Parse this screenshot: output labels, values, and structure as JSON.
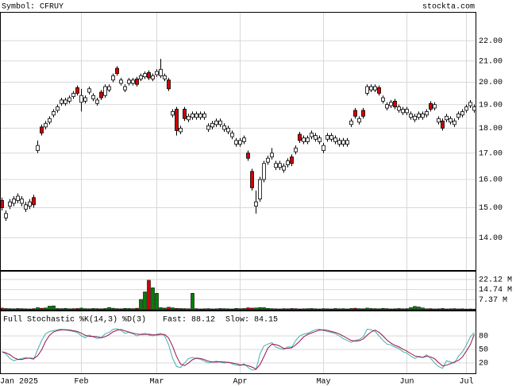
{
  "chart_data": {
    "type": "candlestick",
    "title": "Symbol: CFRUY",
    "source": "stockta.com",
    "log_scale": true,
    "grid": true,
    "up_color": "#ffffff",
    "down_color": "#d40000",
    "ylim": [
      13.0,
      23.5
    ],
    "yticks": [
      {
        "value": 22,
        "label": "22.00"
      },
      {
        "value": 21,
        "label": "21.00"
      },
      {
        "value": 20,
        "label": "20.00"
      },
      {
        "value": 19,
        "label": "19.00"
      },
      {
        "value": 18,
        "label": "18.00"
      },
      {
        "value": 17,
        "label": "17.00"
      },
      {
        "value": 16,
        "label": "16.00"
      },
      {
        "value": 15,
        "label": "15.00"
      },
      {
        "value": 14,
        "label": "14.00"
      }
    ],
    "categories": [
      "Jan 2025",
      null,
      null,
      null,
      null,
      null,
      null,
      null,
      null,
      null,
      null,
      null,
      null,
      null,
      null,
      null,
      null,
      null,
      null,
      null,
      "Feb",
      null,
      null,
      null,
      null,
      null,
      null,
      null,
      null,
      null,
      null,
      null,
      null,
      null,
      null,
      null,
      null,
      null,
      null,
      "Mar",
      null,
      null,
      null,
      null,
      null,
      null,
      null,
      null,
      null,
      null,
      null,
      null,
      null,
      null,
      null,
      null,
      null,
      null,
      null,
      null,
      "Apr",
      null,
      null,
      null,
      null,
      null,
      null,
      null,
      null,
      null,
      null,
      null,
      null,
      null,
      null,
      null,
      null,
      null,
      null,
      null,
      null,
      "May",
      null,
      null,
      null,
      null,
      null,
      null,
      null,
      null,
      null,
      null,
      null,
      null,
      null,
      null,
      null,
      null,
      null,
      null,
      null,
      null,
      "Jun",
      null,
      null,
      null,
      null,
      null,
      null,
      null,
      null,
      null,
      null,
      null,
      null,
      null,
      null,
      "Jul",
      null,
      null
    ],
    "open": [
      15.25,
      14.65,
      15.05,
      15.15,
      15.25,
      15.15,
      14.95,
      15.05,
      15.35,
      17.1,
      18.05,
      18.05,
      18.25,
      18.55,
      18.75,
      19.05,
      19.05,
      19.15,
      19.35,
      19.75,
      19.1,
      19.15,
      19.55,
      19.25,
      19.05,
      19.55,
      19.4,
      19.65,
      20.1,
      20.65,
      19.95,
      19.65,
      19.95,
      19.95,
      20.15,
      20.15,
      20.25,
      20.45,
      20.15,
      20.35,
      20.3,
      20.15,
      20.1,
      18.55,
      18.8,
      17.85,
      18.8,
      18.35,
      18.45,
      18.45,
      18.45,
      18.45,
      17.95,
      18.05,
      18.15,
      18.15,
      17.95,
      17.85,
      17.65,
      17.35,
      17.35,
      17.45,
      17.0,
      16.3,
      15.05,
      15.3,
      16.0,
      16.65,
      16.85,
      16.45,
      16.45,
      16.35,
      16.55,
      16.85,
      17.05,
      17.75,
      17.45,
      17.45,
      17.65,
      17.55,
      17.45,
      17.1,
      17.55,
      17.55,
      17.45,
      17.35,
      17.35,
      17.35,
      18.15,
      18.75,
      18.25,
      18.75,
      19.5,
      19.65,
      19.65,
      19.75,
      19.15,
      18.85,
      18.95,
      19.15,
      18.75,
      18.65,
      18.65,
      18.45,
      18.35,
      18.45,
      18.45,
      18.55,
      19.05,
      18.85,
      18.25,
      18.3,
      18.35,
      18.25,
      18.15,
      18.45,
      18.55,
      18.75,
      18.95,
      18.75
    ],
    "high": [
      15.35,
      14.9,
      15.3,
      15.4,
      15.5,
      15.4,
      15.2,
      15.3,
      15.45,
      17.5,
      18.15,
      18.3,
      18.5,
      18.8,
      19.0,
      19.3,
      19.3,
      19.4,
      19.6,
      19.85,
      19.7,
      19.4,
      19.8,
      19.5,
      19.3,
      19.65,
      19.9,
      19.9,
      20.4,
      20.75,
      20.2,
      19.9,
      20.2,
      20.2,
      20.25,
      20.4,
      20.5,
      20.55,
      20.4,
      20.6,
      21.1,
      20.4,
      20.2,
      18.8,
      18.9,
      18.1,
      18.9,
      18.6,
      18.7,
      18.7,
      18.7,
      18.7,
      18.2,
      18.3,
      18.4,
      18.4,
      18.2,
      18.1,
      17.9,
      17.6,
      17.6,
      17.7,
      17.1,
      16.4,
      15.6,
      16.1,
      16.7,
      16.9,
      17.2,
      16.7,
      16.7,
      16.6,
      16.8,
      16.95,
      17.3,
      17.85,
      17.7,
      17.7,
      17.9,
      17.8,
      17.7,
      17.4,
      17.8,
      17.8,
      17.7,
      17.6,
      17.6,
      17.6,
      18.4,
      18.85,
      18.5,
      18.85,
      19.9,
      19.9,
      19.9,
      19.85,
      19.4,
      19.1,
      19.2,
      19.25,
      19.0,
      18.9,
      18.9,
      18.7,
      18.6,
      18.7,
      18.7,
      18.8,
      19.15,
      19.1,
      18.5,
      18.4,
      18.6,
      18.5,
      18.4,
      18.7,
      18.8,
      19.0,
      19.2,
      19.0
    ],
    "low": [
      14.9,
      14.55,
      14.95,
      15.05,
      15.15,
      15.05,
      14.85,
      14.95,
      15.0,
      17.0,
      17.7,
      17.95,
      18.15,
      18.45,
      18.65,
      18.95,
      18.95,
      19.05,
      19.25,
      19.4,
      18.7,
      19.05,
      19.45,
      19.15,
      18.95,
      19.2,
      19.3,
      19.55,
      20.0,
      20.3,
      19.85,
      19.55,
      19.85,
      19.85,
      19.8,
      20.05,
      20.15,
      20.1,
      20.05,
      20.25,
      20.2,
      20.05,
      19.6,
      18.45,
      17.7,
      17.75,
      18.3,
      18.25,
      18.35,
      18.35,
      18.35,
      18.35,
      17.85,
      17.95,
      18.05,
      18.05,
      17.85,
      17.75,
      17.55,
      17.25,
      17.25,
      17.35,
      16.7,
      15.6,
      14.8,
      15.2,
      15.9,
      16.55,
      16.75,
      16.35,
      16.35,
      16.25,
      16.45,
      16.5,
      16.95,
      17.4,
      17.35,
      17.35,
      17.55,
      17.45,
      17.35,
      17.0,
      17.45,
      17.45,
      17.35,
      17.25,
      17.25,
      17.25,
      18.05,
      18.4,
      18.15,
      18.4,
      19.4,
      19.55,
      19.55,
      19.4,
      19.05,
      18.75,
      18.85,
      18.8,
      18.65,
      18.55,
      18.55,
      18.35,
      18.25,
      18.35,
      18.35,
      18.45,
      18.7,
      18.75,
      18.15,
      17.9,
      18.25,
      18.15,
      18.05,
      18.35,
      18.45,
      18.65,
      18.85,
      18.65
    ],
    "close": [
      15.0,
      14.8,
      15.2,
      15.3,
      15.4,
      15.3,
      15.1,
      15.2,
      15.1,
      17.3,
      17.8,
      18.2,
      18.4,
      18.7,
      18.9,
      19.2,
      19.2,
      19.3,
      19.5,
      19.5,
      19.4,
      19.3,
      19.7,
      19.4,
      19.2,
      19.3,
      19.8,
      19.8,
      20.3,
      20.4,
      20.1,
      19.8,
      20.1,
      20.1,
      19.9,
      20.3,
      20.4,
      20.2,
      20.3,
      20.5,
      20.6,
      20.3,
      19.7,
      18.7,
      17.9,
      18.0,
      18.4,
      18.5,
      18.6,
      18.6,
      18.6,
      18.6,
      18.1,
      18.2,
      18.3,
      18.3,
      18.1,
      18.0,
      17.8,
      17.5,
      17.5,
      17.6,
      16.8,
      15.7,
      15.2,
      16.0,
      16.6,
      16.8,
      17.0,
      16.6,
      16.6,
      16.5,
      16.7,
      16.6,
      17.2,
      17.5,
      17.6,
      17.6,
      17.8,
      17.7,
      17.6,
      17.3,
      17.7,
      17.7,
      17.6,
      17.5,
      17.5,
      17.5,
      18.3,
      18.5,
      18.4,
      18.5,
      19.8,
      19.8,
      19.8,
      19.5,
      19.3,
      19.0,
      19.1,
      18.9,
      18.9,
      18.8,
      18.8,
      18.6,
      18.5,
      18.6,
      18.6,
      18.7,
      18.8,
      19.0,
      18.4,
      18.0,
      18.5,
      18.4,
      18.3,
      18.6,
      18.7,
      18.9,
      19.1,
      18.9
    ],
    "volume": {
      "type": "bar",
      "up_color": "#008000",
      "down_color": "#d40000",
      "ylim": [
        0,
        28.4
      ],
      "yticks": [
        {
          "value": 22.12,
          "label": "22.12 M"
        },
        {
          "value": 14.74,
          "label": "14.74 M"
        },
        {
          "value": 7.37,
          "label": "7.37 M"
        }
      ],
      "values": [
        1.2,
        0.9,
        0.8,
        0.7,
        0.9,
        0.8,
        0.7,
        0.6,
        0.8,
        1.5,
        1.1,
        1.3,
        2.6,
        2.8,
        0.9,
        0.8,
        1.0,
        0.7,
        0.8,
        0.9,
        1.2,
        0.8,
        0.7,
        0.9,
        0.8,
        0.7,
        0.9,
        1.6,
        1.1,
        0.8,
        0.7,
        1.0,
        0.9,
        0.8,
        1.1,
        7.5,
        13.0,
        21.5,
        16.0,
        12.0,
        1.5,
        1.2,
        1.8,
        1.4,
        1.0,
        0.9,
        0.8,
        0.7,
        12.0,
        0.8,
        0.6,
        0.7,
        0.8,
        0.6,
        0.7,
        0.9,
        0.8,
        0.7,
        0.6,
        1.0,
        0.8,
        0.9,
        1.4,
        1.2,
        1.3,
        1.6,
        1.5,
        1.0,
        0.8,
        0.7,
        0.6,
        0.8,
        0.7,
        0.9,
        0.8,
        0.6,
        0.7,
        0.8,
        0.9,
        0.7,
        0.6,
        0.8,
        0.7,
        0.6,
        0.9,
        0.7,
        0.8,
        0.6,
        0.9,
        1.1,
        0.8,
        0.7,
        1.2,
        0.9,
        0.8,
        0.7,
        1.0,
        0.8,
        0.6,
        0.7,
        0.9,
        0.7,
        0.8,
        1.5,
        2.4,
        2.0,
        1.3,
        0.7,
        0.8,
        0.6,
        0.7,
        0.9,
        0.6,
        0.7,
        0.8,
        0.6,
        0.7,
        0.5,
        0.6,
        0.5
      ]
    },
    "stochastic": {
      "type": "line",
      "title": "Full Stochastic %K(14,3) %D(3)",
      "ylim": [
        -3,
        136.5
      ],
      "yticks": [
        80,
        50,
        20
      ],
      "series": [
        {
          "name": "Fast: 88.12",
          "color": "#3fb1b1",
          "values": [
            45,
            40,
            30,
            25,
            28,
            30,
            32,
            30,
            28,
            50,
            70,
            85,
            90,
            92,
            94,
            95,
            93,
            92,
            90,
            88,
            80,
            76,
            82,
            78,
            74,
            76,
            85,
            88,
            95,
            96,
            92,
            86,
            88,
            85,
            80,
            84,
            86,
            82,
            80,
            84,
            86,
            80,
            60,
            30,
            12,
            10,
            20,
            30,
            32,
            30,
            28,
            24,
            20,
            22,
            24,
            22,
            20,
            22,
            18,
            15,
            14,
            18,
            10,
            4,
            5,
            40,
            58,
            62,
            65,
            55,
            52,
            50,
            56,
            55,
            70,
            80,
            84,
            86,
            90,
            94,
            95,
            92,
            90,
            88,
            85,
            80,
            74,
            70,
            66,
            70,
            72,
            78,
            95,
            94,
            90,
            80,
            70,
            62,
            60,
            55,
            52,
            45,
            42,
            35,
            30,
            35,
            32,
            38,
            30,
            20,
            12,
            8,
            25,
            22,
            20,
            35,
            45,
            60,
            78,
            88.12
          ]
        },
        {
          "name": "Slow: 84.15",
          "color": "#9a1048",
          "values": [
            45,
            42.5,
            38.3,
            31.7,
            27.7,
            27.7,
            30,
            30.7,
            30,
            36,
            49.3,
            68.3,
            81.7,
            89,
            92,
            93.7,
            94,
            93.3,
            91.7,
            90,
            86,
            81.3,
            79.3,
            78.7,
            78,
            76,
            78.3,
            83,
            89.3,
            93,
            94.3,
            91.3,
            88.7,
            86.3,
            84.3,
            83,
            83.3,
            84,
            82.7,
            82,
            83.3,
            83.3,
            75.3,
            56.7,
            34,
            17.3,
            14,
            20,
            27.3,
            30.7,
            30,
            27.3,
            24,
            22,
            22,
            22.7,
            22,
            21.3,
            20,
            18.3,
            15.7,
            15.7,
            14,
            10.7,
            6.3,
            16.3,
            34.3,
            53.3,
            61.7,
            60.7,
            57.3,
            52.3,
            52.7,
            53.7,
            60.3,
            68.3,
            78,
            83.3,
            86.7,
            90,
            93,
            93.7,
            92.3,
            90,
            87.7,
            84.3,
            79.7,
            74.7,
            70,
            68.7,
            69.3,
            73.3,
            81.7,
            89,
            93,
            88,
            80,
            70.7,
            64,
            59,
            55.7,
            50.7,
            46.3,
            40.7,
            35.7,
            33.3,
            32.3,
            35,
            33.3,
            29.3,
            20.7,
            13.3,
            15,
            18.3,
            22.3,
            25.7,
            33.3,
            46.7,
            61,
            84.15
          ]
        }
      ]
    }
  }
}
